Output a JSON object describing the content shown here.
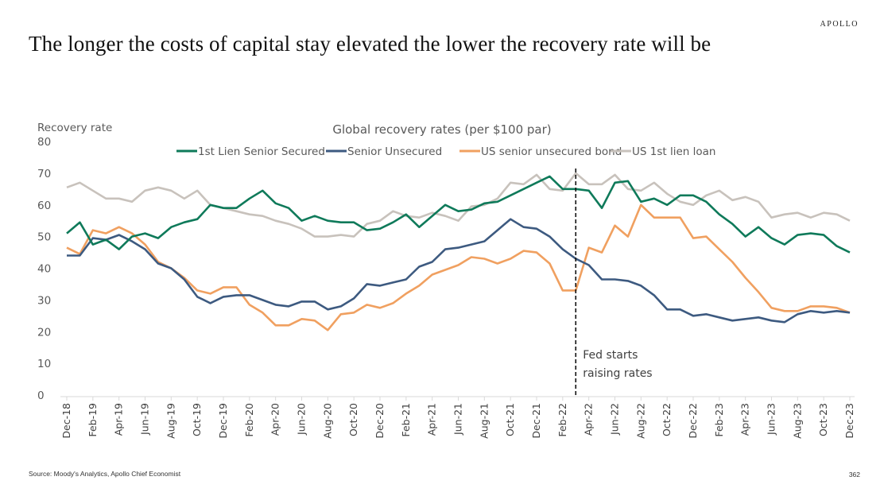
{
  "header": {
    "brand": "APOLLO",
    "title": "The longer the costs of capital stay elevated the lower the recovery rate will be"
  },
  "footer": {
    "source": "Source: Moody's Analytics, Apollo Chief Economist",
    "page_number": "362"
  },
  "chart_data": {
    "type": "line",
    "title": "Global recovery rates (per $100 par)",
    "ylabel": "Recovery rate",
    "xlabel": "",
    "ylim": [
      0,
      80
    ],
    "yticks": [
      0,
      10,
      20,
      30,
      40,
      50,
      60,
      70,
      80
    ],
    "grid": false,
    "legend_position": "top-center",
    "x_tick_labels": [
      "Dec-18",
      "Feb-19",
      "Apr-19",
      "Jun-19",
      "Aug-19",
      "Oct-19",
      "Dec-19",
      "Feb-20",
      "Apr-20",
      "Jun-20",
      "Aug-20",
      "Oct-20",
      "Dec-20",
      "Feb-21",
      "Apr-21",
      "Jun-21",
      "Aug-21",
      "Oct-21",
      "Dec-21",
      "Feb-22",
      "Apr-22",
      "Jun-22",
      "Aug-22",
      "Oct-22",
      "Dec-22",
      "Feb-23",
      "Apr-23",
      "Jun-23",
      "Aug-23",
      "Oct-23",
      "Dec-23"
    ],
    "x_start": "Dec-18",
    "x_end": "Dec-23",
    "x_frequency": "monthly",
    "series": [
      {
        "name": "1st Lien Senior Secured",
        "color": "#0f7a5a",
        "values": [
          51,
          54.5,
          47.5,
          49,
          46,
          50,
          51,
          49.5,
          53,
          54.5,
          55.5,
          60,
          59,
          59,
          62,
          64.5,
          60.5,
          59,
          55,
          56.5,
          55,
          54.5,
          54.5,
          52,
          52.5,
          54.5,
          57,
          53,
          56.5,
          60,
          58,
          58.5,
          60.5,
          61,
          63,
          65,
          67,
          69,
          65,
          65,
          64.5,
          59,
          67,
          67.5,
          61,
          62,
          60,
          63,
          63,
          61,
          57,
          54,
          50,
          53,
          49.5,
          47.5,
          50.5,
          51,
          50.5,
          47,
          45
        ]
      },
      {
        "name": "Senior Unsecured",
        "color": "#3d5a80",
        "values": [
          44,
          44,
          49.5,
          49,
          50.5,
          48.5,
          46,
          41.5,
          40,
          36.5,
          31,
          29,
          31,
          31.5,
          31.5,
          30,
          28.5,
          28,
          29.5,
          29.5,
          27,
          28,
          30.5,
          35,
          34.5,
          35.5,
          36.5,
          40.5,
          42,
          46,
          46.5,
          47.5,
          48.5,
          52,
          55.5,
          53,
          52.5,
          50,
          46,
          43,
          41,
          36.5,
          36.5,
          36,
          34.5,
          31.5,
          27,
          27,
          25,
          25.5,
          24.5,
          23.5,
          24,
          24.5,
          23.5,
          23,
          25.5,
          26.5,
          26,
          26.5,
          26
        ]
      },
      {
        "name": "US senior unsecured bond",
        "color": "#f0a060",
        "values": [
          46.5,
          44.5,
          52,
          51,
          53,
          51,
          47.5,
          42,
          40,
          37,
          33,
          32,
          34,
          34,
          28.5,
          26,
          22,
          22,
          24,
          23.5,
          20.5,
          25.5,
          26,
          28.5,
          27.5,
          29,
          32,
          34.5,
          38,
          39.5,
          41,
          43.5,
          43,
          41.5,
          43,
          45.5,
          45,
          41.5,
          33,
          33,
          46.5,
          45,
          53.5,
          50,
          60,
          56,
          56,
          56,
          49.5,
          50,
          46,
          42,
          37,
          32.5,
          27.5,
          26.5,
          26.5,
          28,
          28,
          27.5,
          26
        ]
      },
      {
        "name": "US 1st lien loan",
        "color": "#c8c2bc",
        "values": [
          65.5,
          67,
          64.5,
          62,
          62,
          61,
          64.5,
          65.5,
          64.5,
          62,
          64.5,
          60,
          59,
          58,
          57,
          56.5,
          55,
          54,
          52.5,
          50,
          50,
          50.5,
          50,
          54,
          55,
          58,
          56.5,
          56,
          57.5,
          56.5,
          55,
          59.5,
          60,
          62,
          67,
          66.5,
          69.5,
          65,
          64.5,
          70,
          66.5,
          66.5,
          69.5,
          65,
          64.5,
          67,
          63.5,
          61,
          60,
          63,
          64.5,
          61.5,
          62.5,
          61,
          56,
          57,
          57.5,
          56,
          57.5,
          57,
          55
        ]
      }
    ],
    "annotations": [
      {
        "type": "vertical-dashed-line",
        "x": "Mar-22",
        "text_lines": [
          "Fed starts",
          "raising rates"
        ]
      }
    ]
  }
}
